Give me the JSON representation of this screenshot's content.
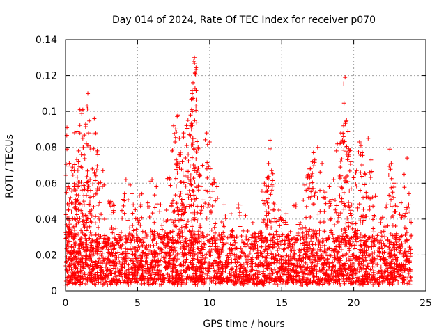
{
  "chart_data": {
    "type": "scatter",
    "title": "Day 014 of 2024, Rate Of TEC Index for receiver p070",
    "xlabel": "GPS time / hours",
    "ylabel": "ROTI / TECUs",
    "xlim": [
      0,
      25
    ],
    "ylim": [
      0,
      0.14
    ],
    "x_ticks": [
      0,
      5,
      10,
      15,
      20,
      25
    ],
    "y_ticks": [
      0,
      0.02,
      0.04,
      0.06,
      0.08,
      0.1,
      0.12,
      0.14
    ],
    "x_tick_labels": [
      "0",
      "5",
      "10",
      "15",
      "20",
      "25"
    ],
    "y_tick_labels": [
      "0",
      "0.02",
      "0.04",
      "0.06",
      "0.08",
      "0.1",
      "0.12",
      "0.14"
    ],
    "grid": true,
    "marker": "+",
    "series": [
      {
        "name": "ROTI",
        "color": "#ff0000",
        "points": [
          [
            0.1,
            0.091
          ],
          [
            0.1,
            0.079
          ],
          [
            0.2,
            0.058
          ],
          [
            0.2,
            0.045
          ],
          [
            0.3,
            0.033
          ],
          [
            0.35,
            0.052
          ],
          [
            0.5,
            0.069
          ],
          [
            0.6,
            0.067
          ],
          [
            0.6,
            0.058
          ],
          [
            0.7,
            0.047
          ],
          [
            0.8,
            0.089
          ],
          [
            0.8,
            0.059
          ],
          [
            0.9,
            0.078
          ],
          [
            1.0,
            0.101
          ],
          [
            1.0,
            0.088
          ],
          [
            1.1,
            0.076
          ],
          [
            1.2,
            0.101
          ],
          [
            1.2,
            0.085
          ],
          [
            1.3,
            0.048
          ],
          [
            1.4,
            0.093
          ],
          [
            1.5,
            0.103
          ],
          [
            1.55,
            0.11
          ],
          [
            1.6,
            0.088
          ],
          [
            1.7,
            0.062
          ],
          [
            1.8,
            0.045
          ],
          [
            2.0,
            0.096
          ],
          [
            2.1,
            0.088
          ],
          [
            2.2,
            0.078
          ],
          [
            2.3,
            0.06
          ],
          [
            2.6,
            0.067
          ],
          [
            3.0,
            0.05
          ],
          [
            3.3,
            0.048
          ],
          [
            3.5,
            0.035
          ],
          [
            4.0,
            0.051
          ],
          [
            4.2,
            0.062
          ],
          [
            4.5,
            0.059
          ],
          [
            4.7,
            0.048
          ],
          [
            5.0,
            0.04
          ],
          [
            5.3,
            0.054
          ],
          [
            5.7,
            0.049
          ],
          [
            6.0,
            0.062
          ],
          [
            6.3,
            0.058
          ],
          [
            6.6,
            0.048
          ],
          [
            7.0,
            0.045
          ],
          [
            7.2,
            0.063
          ],
          [
            7.4,
            0.078
          ],
          [
            7.5,
            0.092
          ],
          [
            7.6,
            0.083
          ],
          [
            7.7,
            0.071
          ],
          [
            7.8,
            0.098
          ],
          [
            7.9,
            0.085
          ],
          [
            8.0,
            0.076
          ],
          [
            8.1,
            0.072
          ],
          [
            8.2,
            0.088
          ],
          [
            8.3,
            0.064
          ],
          [
            8.4,
            0.081
          ],
          [
            8.5,
            0.095
          ],
          [
            8.6,
            0.087
          ],
          [
            8.7,
            0.092
          ],
          [
            8.75,
            0.101
          ],
          [
            8.8,
            0.11
          ],
          [
            8.85,
            0.116
          ],
          [
            8.9,
            0.128
          ],
          [
            8.95,
            0.13
          ],
          [
            9.0,
            0.121
          ],
          [
            9.05,
            0.103
          ],
          [
            9.1,
            0.094
          ],
          [
            9.2,
            0.08
          ],
          [
            9.3,
            0.065
          ],
          [
            9.5,
            0.07
          ],
          [
            9.8,
            0.088
          ],
          [
            10.0,
            0.083
          ],
          [
            10.3,
            0.062
          ],
          [
            10.5,
            0.058
          ],
          [
            11.0,
            0.048
          ],
          [
            11.5,
            0.043
          ],
          [
            12.0,
            0.048
          ],
          [
            12.5,
            0.042
          ],
          [
            13.0,
            0.038
          ],
          [
            13.5,
            0.033
          ],
          [
            13.8,
            0.06
          ],
          [
            13.9,
            0.055
          ],
          [
            14.0,
            0.063
          ],
          [
            14.1,
            0.071
          ],
          [
            14.2,
            0.084
          ],
          [
            14.3,
            0.067
          ],
          [
            14.5,
            0.048
          ],
          [
            14.8,
            0.045
          ],
          [
            15.0,
            0.04
          ],
          [
            15.3,
            0.043
          ],
          [
            15.6,
            0.033
          ],
          [
            16.0,
            0.048
          ],
          [
            16.3,
            0.038
          ],
          [
            16.6,
            0.059
          ],
          [
            16.8,
            0.064
          ],
          [
            17.0,
            0.068
          ],
          [
            17.2,
            0.077
          ],
          [
            17.3,
            0.073
          ],
          [
            17.5,
            0.08
          ],
          [
            17.8,
            0.071
          ],
          [
            18.0,
            0.055
          ],
          [
            18.3,
            0.058
          ],
          [
            18.6,
            0.062
          ],
          [
            18.8,
            0.078
          ],
          [
            19.0,
            0.082
          ],
          [
            19.1,
            0.088
          ],
          [
            19.2,
            0.083
          ],
          [
            19.3,
            0.092
          ],
          [
            19.4,
            0.119
          ],
          [
            19.5,
            0.095
          ],
          [
            19.6,
            0.089
          ],
          [
            19.7,
            0.078
          ],
          [
            19.8,
            0.072
          ],
          [
            20.0,
            0.063
          ],
          [
            20.2,
            0.067
          ],
          [
            20.4,
            0.083
          ],
          [
            20.5,
            0.081
          ],
          [
            20.6,
            0.077
          ],
          [
            20.8,
            0.065
          ],
          [
            21.0,
            0.085
          ],
          [
            21.2,
            0.073
          ],
          [
            21.5,
            0.053
          ],
          [
            22.0,
            0.041
          ],
          [
            22.3,
            0.048
          ],
          [
            22.5,
            0.079
          ],
          [
            22.6,
            0.071
          ],
          [
            22.8,
            0.06
          ],
          [
            23.0,
            0.047
          ],
          [
            23.3,
            0.049
          ],
          [
            23.5,
            0.065
          ],
          [
            23.7,
            0.074
          ],
          [
            23.9,
            0.044
          ]
        ],
        "dense_band": {
          "note": "dense cluster of points continuous over the full day",
          "x_range": [
            0.0,
            24.0
          ],
          "typical_range": [
            0.003,
            0.03
          ]
        }
      }
    ]
  }
}
